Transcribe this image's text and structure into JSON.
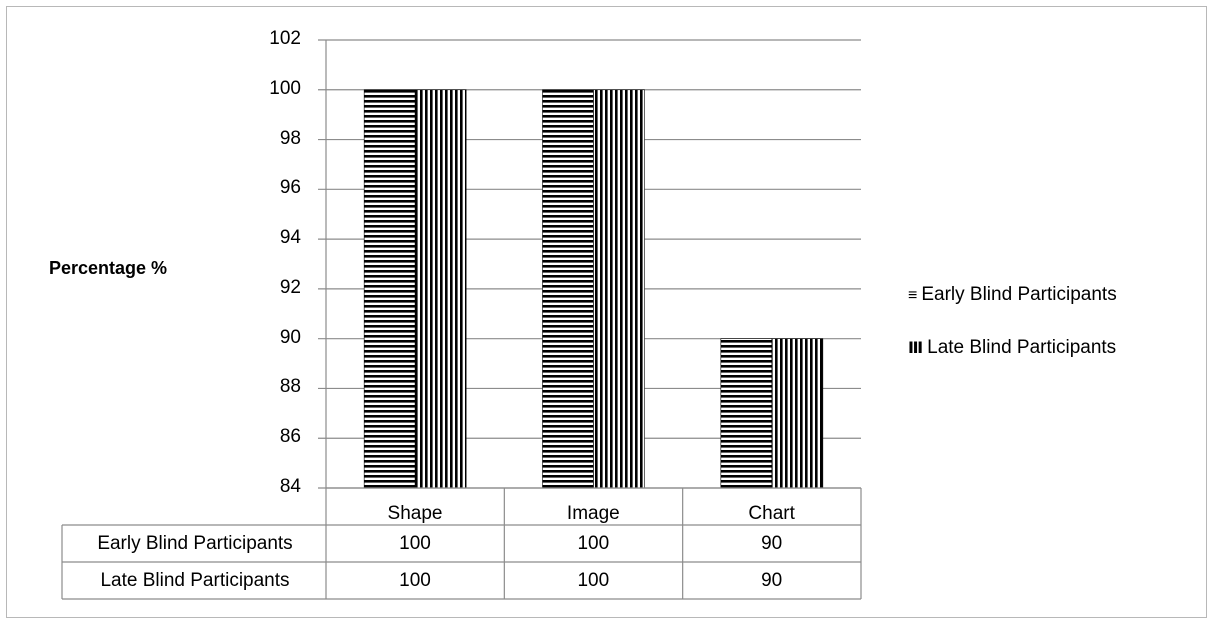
{
  "chart_data": {
    "type": "bar",
    "ylabel": "Percentage %",
    "ylim": [
      84,
      102
    ],
    "yticks": [
      "102",
      "100",
      "98",
      "96",
      "94",
      "92",
      "90",
      "88",
      "86",
      "84"
    ],
    "categories": [
      "Shape",
      "Image",
      "Chart"
    ],
    "series": [
      {
        "name": "Early Blind Participants",
        "values": [
          100,
          100,
          90
        ],
        "pattern": "horizontal-stripes",
        "legend_symbol": "≡"
      },
      {
        "name": "Late Blind Participants",
        "values": [
          100,
          100,
          90
        ],
        "pattern": "vertical-stripes",
        "legend_symbol": "Ⅲ"
      }
    ],
    "table_rows": [
      {
        "label": "Early Blind Participants",
        "cells": [
          "100",
          "100",
          "90"
        ]
      },
      {
        "label": "Late Blind Participants",
        "cells": [
          "100",
          "100",
          "90"
        ]
      }
    ],
    "grid": true,
    "legend_position": "right"
  }
}
